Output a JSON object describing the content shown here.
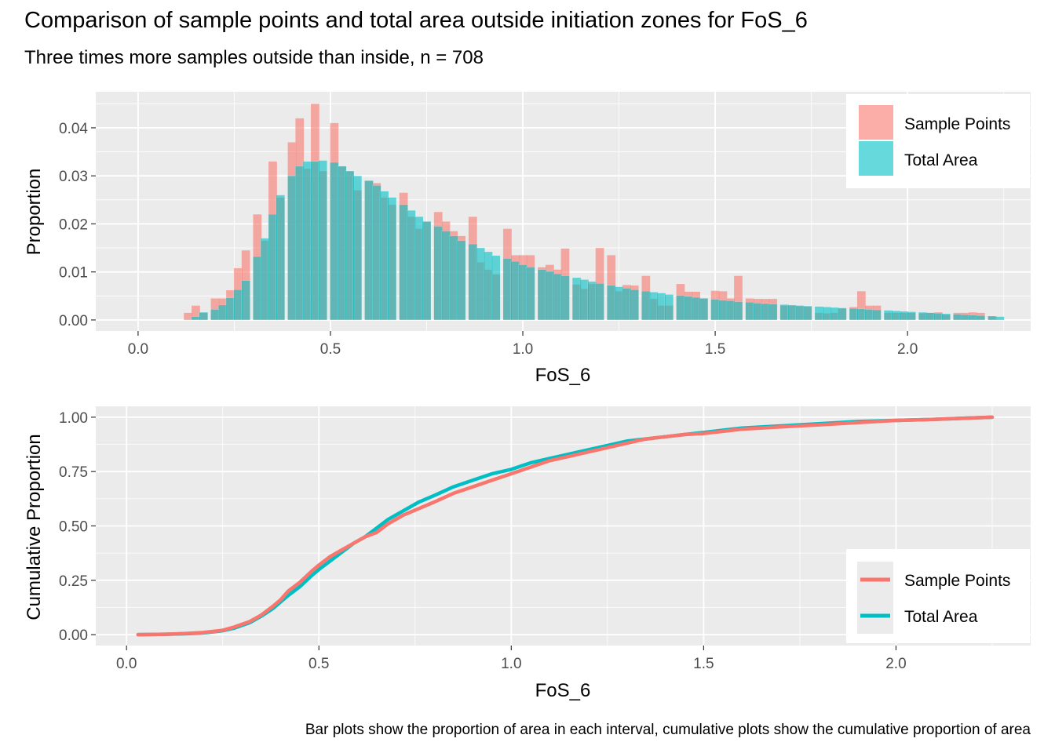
{
  "title": "Comparison of sample points and total area outside initiation zones for FoS_6",
  "subtitle": "Three times more samples outside than inside, n = 708",
  "caption": "Bar plots show the proportion of area in each interval, cumulative plots show the cumulative proportion of area",
  "colors": {
    "sample": "#F8766D",
    "area": "#00BFC4",
    "panel": "#EBEBEB",
    "grid": "#FFFFFF"
  },
  "chart_data": [
    {
      "type": "bar",
      "subtype": "overlaid-histogram",
      "xlabel": "FoS_6",
      "ylabel": "Proportion",
      "xlim": [
        -0.11,
        2.32
      ],
      "ylim": [
        -0.0023,
        0.0475
      ],
      "xticks": [
        0.0,
        0.5,
        1.0,
        1.5,
        2.0
      ],
      "xtick_labels": [
        "0.0",
        "0.5",
        "1.0",
        "1.5",
        "2.0"
      ],
      "yticks": [
        0.0,
        0.01,
        0.02,
        0.03,
        0.04
      ],
      "ytick_labels": [
        "0.00",
        "0.01",
        "0.02",
        "0.03",
        "0.04"
      ],
      "grid": true,
      "legend_position": "top-right",
      "bin_width": 0.0225,
      "x": [
        0.13,
        0.15,
        0.17,
        0.2,
        0.22,
        0.24,
        0.26,
        0.28,
        0.31,
        0.33,
        0.35,
        0.37,
        0.4,
        0.42,
        0.44,
        0.46,
        0.48,
        0.51,
        0.53,
        0.55,
        0.57,
        0.6,
        0.62,
        0.64,
        0.66,
        0.69,
        0.71,
        0.73,
        0.75,
        0.78,
        0.8,
        0.82,
        0.84,
        0.87,
        0.89,
        0.91,
        0.93,
        0.96,
        0.98,
        1.0,
        1.02,
        1.05,
        1.07,
        1.09,
        1.11,
        1.14,
        1.16,
        1.18,
        1.2,
        1.23,
        1.25,
        1.27,
        1.29,
        1.32,
        1.34,
        1.36,
        1.38,
        1.41,
        1.43,
        1.45,
        1.47,
        1.5,
        1.52,
        1.54,
        1.56,
        1.59,
        1.61,
        1.63,
        1.65,
        1.68,
        1.7,
        1.72,
        1.74,
        1.77,
        1.79,
        1.81,
        1.83,
        1.86,
        1.88,
        1.9,
        1.92,
        1.95,
        1.97,
        1.99,
        2.01,
        2.04,
        2.06,
        2.08,
        2.1,
        2.13,
        2.15,
        2.17,
        2.19,
        2.22,
        2.24
      ],
      "series": [
        {
          "name": "Sample Points",
          "values": [
            0.0015,
            0.003,
            0.0015,
            0.0045,
            0.0045,
            0.0062,
            0.0108,
            0.0145,
            0.022,
            0.0165,
            0.033,
            0.0255,
            0.037,
            0.042,
            0.0315,
            0.045,
            0.031,
            0.041,
            0.032,
            0.031,
            0.027,
            0.029,
            0.0285,
            0.0255,
            0.024,
            0.0265,
            0.0215,
            0.019,
            0.0205,
            0.0225,
            0.0205,
            0.0185,
            0.0175,
            0.0215,
            0.012,
            0.0105,
            0.0095,
            0.019,
            0.0135,
            0.0135,
            0.0135,
            0.011,
            0.0115,
            0.0105,
            0.0149,
            0.0074,
            0.0065,
            0.0075,
            0.015,
            0.0135,
            0.006,
            0.0073,
            0.0072,
            0.0092,
            0.0044,
            0.003,
            0.003,
            0.0075,
            0.0059,
            0.0059,
            0.0045,
            0.0061,
            0.006,
            0.0045,
            0.0092,
            0.0045,
            0.0044,
            0.0044,
            0.0044,
            0.003,
            0.003,
            0.0029,
            0.0028,
            0.0015,
            0.0014,
            0.0015,
            0.0024,
            0.0027,
            0.006,
            0.003,
            0.003,
            0.0015,
            0.0015,
            0.0015,
            0.0015,
            0.0014,
            0.0015,
            0.0016,
            0.0011,
            0.0015,
            0.0015,
            0.0016,
            0.0015,
            0.0008,
            0.0001
          ]
        },
        {
          "name": "Total Area",
          "values": [
            0.0001,
            0.0007,
            0.0016,
            0.0022,
            0.0031,
            0.0046,
            0.0063,
            0.0082,
            0.0132,
            0.017,
            0.022,
            0.026,
            0.03,
            0.032,
            0.033,
            0.033,
            0.0332,
            0.0328,
            0.032,
            0.031,
            0.03,
            0.029,
            0.028,
            0.0268,
            0.0255,
            0.024,
            0.0228,
            0.0215,
            0.0205,
            0.0195,
            0.0185,
            0.0175,
            0.0165,
            0.0158,
            0.015,
            0.0142,
            0.0134,
            0.0128,
            0.0122,
            0.0115,
            0.011,
            0.0105,
            0.0101,
            0.0096,
            0.0092,
            0.0088,
            0.0084,
            0.008,
            0.0076,
            0.0072,
            0.0069,
            0.0066,
            0.0063,
            0.006,
            0.0058,
            0.0056,
            0.0053,
            0.0051,
            0.0049,
            0.0047,
            0.0045,
            0.0043,
            0.0041,
            0.004,
            0.0038,
            0.0037,
            0.0035,
            0.0034,
            0.0033,
            0.0032,
            0.0031,
            0.003,
            0.0029,
            0.0028,
            0.0027,
            0.0026,
            0.0025,
            0.0024,
            0.0023,
            0.0022,
            0.0021,
            0.002,
            0.0019,
            0.0018,
            0.0017,
            0.0016,
            0.0015,
            0.0014,
            0.0013,
            0.0012,
            0.0011,
            0.001,
            0.0009,
            0.0008,
            0.0007
          ]
        }
      ]
    },
    {
      "type": "line",
      "xlabel": "FoS_6",
      "ylabel": "Cumulative Proportion",
      "xlim": [
        -0.08,
        2.35
      ],
      "ylim": [
        -0.05,
        1.05
      ],
      "xticks": [
        0.0,
        0.5,
        1.0,
        1.5,
        2.0
      ],
      "xtick_labels": [
        "0.0",
        "0.5",
        "1.0",
        "1.5",
        "2.0"
      ],
      "yticks": [
        0.0,
        0.25,
        0.5,
        0.75,
        1.0
      ],
      "ytick_labels": [
        "0.00",
        "0.25",
        "0.50",
        "0.75",
        "1.00"
      ],
      "grid": true,
      "legend_position": "bottom-right",
      "series": [
        {
          "name": "Sample Points",
          "x": [
            0.03,
            0.1,
            0.15,
            0.2,
            0.25,
            0.28,
            0.32,
            0.35,
            0.38,
            0.4,
            0.42,
            0.45,
            0.48,
            0.5,
            0.53,
            0.56,
            0.59,
            0.62,
            0.65,
            0.68,
            0.72,
            0.76,
            0.8,
            0.85,
            0.9,
            0.95,
            1.0,
            1.05,
            1.1,
            1.15,
            1.2,
            1.25,
            1.3,
            1.35,
            1.4,
            1.45,
            1.5,
            1.55,
            1.6,
            1.7,
            1.8,
            1.9,
            2.0,
            2.1,
            2.25
          ],
          "y": [
            0.0,
            0.002,
            0.005,
            0.01,
            0.02,
            0.035,
            0.06,
            0.09,
            0.13,
            0.16,
            0.2,
            0.24,
            0.29,
            0.32,
            0.36,
            0.39,
            0.42,
            0.45,
            0.47,
            0.51,
            0.55,
            0.58,
            0.61,
            0.65,
            0.68,
            0.71,
            0.74,
            0.77,
            0.8,
            0.82,
            0.84,
            0.86,
            0.88,
            0.9,
            0.91,
            0.92,
            0.925,
            0.935,
            0.945,
            0.955,
            0.965,
            0.975,
            0.985,
            0.99,
            1.0
          ]
        },
        {
          "name": "Total Area",
          "x": [
            0.03,
            0.1,
            0.15,
            0.2,
            0.25,
            0.28,
            0.32,
            0.35,
            0.38,
            0.4,
            0.42,
            0.45,
            0.48,
            0.5,
            0.53,
            0.56,
            0.59,
            0.62,
            0.65,
            0.68,
            0.72,
            0.76,
            0.8,
            0.85,
            0.9,
            0.95,
            1.0,
            1.05,
            1.1,
            1.15,
            1.2,
            1.25,
            1.3,
            1.35,
            1.4,
            1.45,
            1.5,
            1.55,
            1.6,
            1.7,
            1.8,
            1.9,
            2.0,
            2.1,
            2.25
          ],
          "y": [
            0.0,
            0.002,
            0.004,
            0.008,
            0.018,
            0.03,
            0.055,
            0.085,
            0.12,
            0.15,
            0.18,
            0.22,
            0.27,
            0.3,
            0.34,
            0.38,
            0.42,
            0.45,
            0.49,
            0.53,
            0.57,
            0.61,
            0.64,
            0.68,
            0.71,
            0.74,
            0.76,
            0.79,
            0.81,
            0.83,
            0.85,
            0.87,
            0.89,
            0.9,
            0.91,
            0.92,
            0.93,
            0.94,
            0.95,
            0.96,
            0.97,
            0.98,
            0.985,
            0.99,
            1.0
          ]
        }
      ]
    }
  ]
}
